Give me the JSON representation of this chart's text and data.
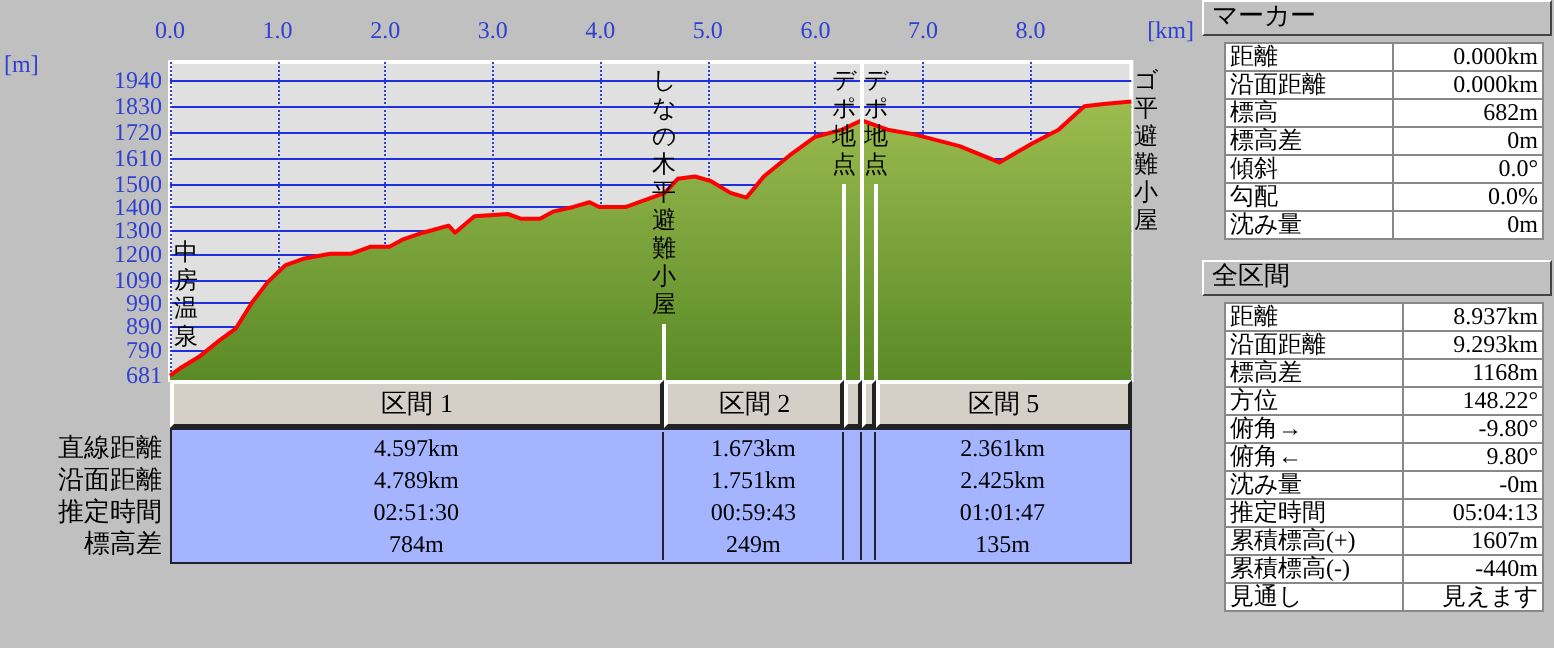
{
  "chart_data": [
    {
      "type": "area",
      "xlabel": "[km]",
      "ylabel": "[m]",
      "xlim": [
        0,
        8.937
      ],
      "xticks": [
        {
          "value": 0,
          "label": "0.0"
        },
        {
          "value": 1,
          "label": "1.0"
        },
        {
          "value": 2,
          "label": "2.0"
        },
        {
          "value": 3,
          "label": "3.0"
        },
        {
          "value": 4,
          "label": "4.0"
        },
        {
          "value": 5,
          "label": "5.0"
        },
        {
          "value": 6,
          "label": "6.0"
        },
        {
          "value": 7,
          "label": "7.0"
        },
        {
          "value": 8,
          "label": "8.0"
        }
      ],
      "ylim": [
        661,
        2019
      ],
      "yticks": [
        681,
        790,
        890,
        990,
        1090,
        1200,
        1300,
        1400,
        1500,
        1610,
        1720,
        1830,
        1940
      ],
      "grid": true,
      "marker": "none",
      "line_style": "solid",
      "series": [
        {
          "color": "#ff0000",
          "x": [
            0,
            0.09,
            0.27,
            0.46,
            0.61,
            0.76,
            0.91,
            1.07,
            1.25,
            1.49,
            1.68,
            1.86,
            2.04,
            2.16,
            2.35,
            2.59,
            2.65,
            2.83,
            3.14,
            3.26,
            3.44,
            3.56,
            3.75,
            3.9,
            3.99,
            4.24,
            4.42,
            4.6,
            4.72,
            4.88,
            5.03,
            5.21,
            5.36,
            5.52,
            5.76,
            6.0,
            6.25,
            6.43,
            6.67,
            6.92,
            7.34,
            7.71,
            8.01,
            8.26,
            8.5,
            8.68,
            8.937
          ],
          "values": [
            680,
            710,
            760,
            830,
            880,
            990,
            1080,
            1150,
            1180,
            1200,
            1200,
            1230,
            1230,
            1260,
            1290,
            1320,
            1290,
            1360,
            1370,
            1350,
            1350,
            1380,
            1400,
            1420,
            1400,
            1400,
            1430,
            1460,
            1520,
            1530,
            1510,
            1460,
            1440,
            1530,
            1620,
            1700,
            1730,
            1770,
            1730,
            1710,
            1660,
            1590,
            1670,
            1730,
            1830,
            1840,
            1850
          ]
        }
      ],
      "ref_lines": [
        {
          "axis": "x",
          "value": 4.597,
          "label": "しなの木平避難小屋",
          "color": "#ffffff"
        },
        {
          "axis": "x",
          "value": 6.27,
          "label": "デポ地点",
          "color": "#ffffff"
        },
        {
          "axis": "x",
          "value": 6.43,
          "color": "#ffffff"
        },
        {
          "axis": "x",
          "value": 6.56,
          "label": "デポ地点",
          "color": "#ffffff"
        }
      ],
      "annotations": [
        "中房温泉",
        "ゴ平避難小屋"
      ]
    },
    {
      "type": "other",
      "categories": [
        "区間 1",
        "区間 2",
        null,
        null,
        "区間 5"
      ],
      "y_categories": [
        "直線距離",
        "沿面距離",
        "推定時間",
        "標高差"
      ],
      "cell_labels": [
        [
          "4.597km",
          "1.673km",
          null,
          null,
          "2.361km"
        ],
        [
          "4.789km",
          "1.751km",
          null,
          null,
          "2.425km"
        ],
        [
          "02:51:30",
          "00:59:43",
          null,
          null,
          "01:01:47"
        ],
        [
          "784m",
          "249m",
          null,
          null,
          "135m"
        ]
      ]
    },
    {
      "type": "other",
      "title": "マーカー",
      "cell_labels": [
        [
          "距離",
          "0.000km"
        ],
        [
          "沿面距離",
          "0.000km"
        ],
        [
          "標高",
          "682m"
        ],
        [
          "標高差",
          "0m"
        ],
        [
          "傾斜",
          "0.0°"
        ],
        [
          "勾配",
          "0.0%"
        ],
        [
          "沈み量",
          "0m"
        ]
      ]
    },
    {
      "type": "other",
      "title": "全区間",
      "cell_labels": [
        [
          "距離",
          "8.937km"
        ],
        [
          "沿面距離",
          "9.293km"
        ],
        [
          "標高差",
          "1168m"
        ],
        [
          "方位",
          "148.22°"
        ],
        [
          "俯角→",
          "-9.80°"
        ],
        [
          "俯角←",
          "9.80°"
        ],
        [
          "沈み量",
          "-0m"
        ],
        [
          "推定時間",
          "05:04:13"
        ],
        [
          "累積標高(+)",
          "1607m"
        ],
        [
          "累積標高(-)",
          "-440m"
        ],
        [
          "見通し",
          "見えます"
        ]
      ]
    }
  ]
}
